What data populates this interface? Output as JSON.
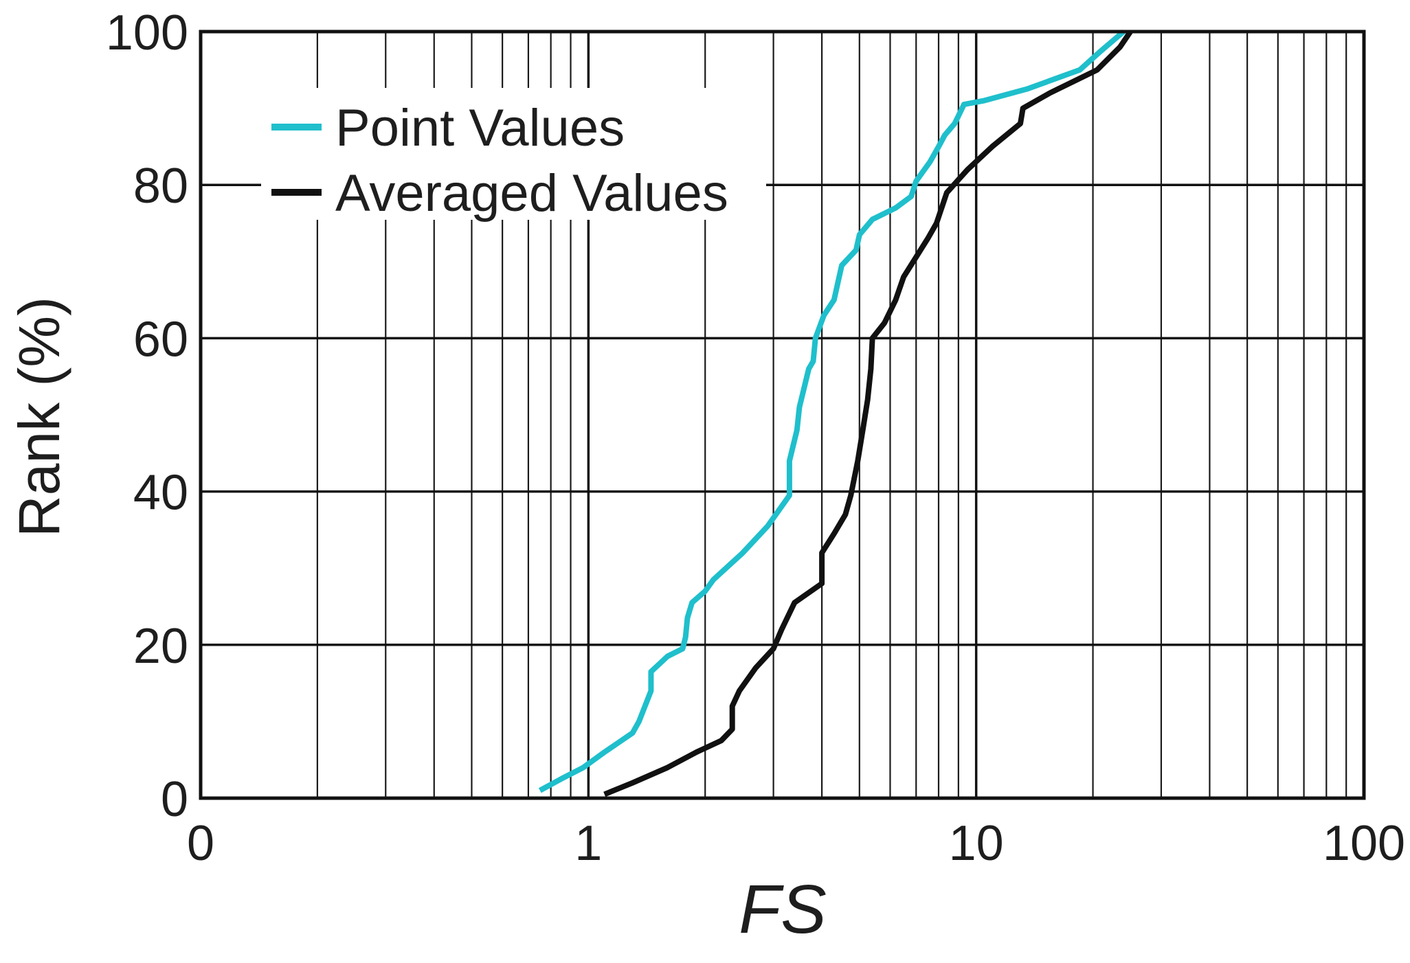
{
  "chart_data": {
    "type": "line",
    "xlabel": "FS",
    "ylabel": "Rank (%)",
    "x_scale": "log",
    "xlim": [
      0.1,
      100
    ],
    "ylim": [
      0,
      100
    ],
    "x_ticks": [
      {
        "value": 0.1,
        "label": "0"
      },
      {
        "value": 1,
        "label": "1"
      },
      {
        "value": 10,
        "label": "10"
      },
      {
        "value": 100,
        "label": "100"
      }
    ],
    "y_ticks": [
      {
        "value": 0,
        "label": "0"
      },
      {
        "value": 20,
        "label": "20"
      },
      {
        "value": 40,
        "label": "40"
      },
      {
        "value": 60,
        "label": "60"
      },
      {
        "value": 80,
        "label": "80"
      },
      {
        "value": 100,
        "label": "100"
      }
    ],
    "grid": true,
    "legend_position": "top-left",
    "series": [
      {
        "name": "Point Values",
        "color": "#1fbfcc",
        "points": [
          [
            0.75,
            1
          ],
          [
            0.85,
            2.5
          ],
          [
            0.97,
            4
          ],
          [
            1.1,
            6
          ],
          [
            1.3,
            8.5
          ],
          [
            1.35,
            10
          ],
          [
            1.45,
            14
          ],
          [
            1.45,
            16.5
          ],
          [
            1.6,
            18.5
          ],
          [
            1.75,
            19.5
          ],
          [
            1.78,
            21
          ],
          [
            1.8,
            23.5
          ],
          [
            1.85,
            25.5
          ],
          [
            2.0,
            27
          ],
          [
            2.1,
            28.5
          ],
          [
            2.5,
            32
          ],
          [
            2.9,
            35.5
          ],
          [
            3.3,
            39.5
          ],
          [
            3.3,
            44
          ],
          [
            3.45,
            48
          ],
          [
            3.5,
            51
          ],
          [
            3.7,
            56
          ],
          [
            3.8,
            57
          ],
          [
            3.85,
            60
          ],
          [
            4.05,
            63
          ],
          [
            4.3,
            65
          ],
          [
            4.5,
            69.5
          ],
          [
            4.9,
            71.5
          ],
          [
            5.0,
            73.5
          ],
          [
            5.4,
            75.5
          ],
          [
            6.2,
            77
          ],
          [
            6.8,
            78.5
          ],
          [
            7.0,
            80.5
          ],
          [
            7.6,
            83
          ],
          [
            8.0,
            85
          ],
          [
            8.3,
            86.5
          ],
          [
            8.8,
            88
          ],
          [
            9.0,
            89
          ],
          [
            9.3,
            90.5
          ],
          [
            10.5,
            91
          ],
          [
            13.5,
            92.5
          ],
          [
            18.5,
            95
          ],
          [
            21.0,
            97.5
          ],
          [
            24.0,
            100
          ]
        ]
      },
      {
        "name": "Averaged Values",
        "color": "#111111",
        "points": [
          [
            1.1,
            0.5
          ],
          [
            1.3,
            2
          ],
          [
            1.6,
            4
          ],
          [
            1.9,
            6
          ],
          [
            2.2,
            7.5
          ],
          [
            2.35,
            9
          ],
          [
            2.35,
            12
          ],
          [
            2.45,
            14
          ],
          [
            2.7,
            17
          ],
          [
            3.0,
            19.5
          ],
          [
            3.15,
            22
          ],
          [
            3.4,
            25.5
          ],
          [
            4.0,
            28
          ],
          [
            4.0,
            32
          ],
          [
            4.3,
            34.5
          ],
          [
            4.6,
            37
          ],
          [
            4.75,
            39.5
          ],
          [
            4.95,
            44
          ],
          [
            5.1,
            48
          ],
          [
            5.25,
            52
          ],
          [
            5.35,
            56
          ],
          [
            5.4,
            60
          ],
          [
            5.8,
            62
          ],
          [
            6.2,
            65
          ],
          [
            6.5,
            68
          ],
          [
            7.5,
            73
          ],
          [
            7.9,
            75
          ],
          [
            8.4,
            79
          ],
          [
            9.5,
            82
          ],
          [
            11.0,
            85
          ],
          [
            13.0,
            88
          ],
          [
            13.2,
            90
          ],
          [
            15.5,
            92
          ],
          [
            20.5,
            95
          ],
          [
            23.5,
            98
          ],
          [
            25.0,
            100
          ]
        ]
      }
    ]
  }
}
